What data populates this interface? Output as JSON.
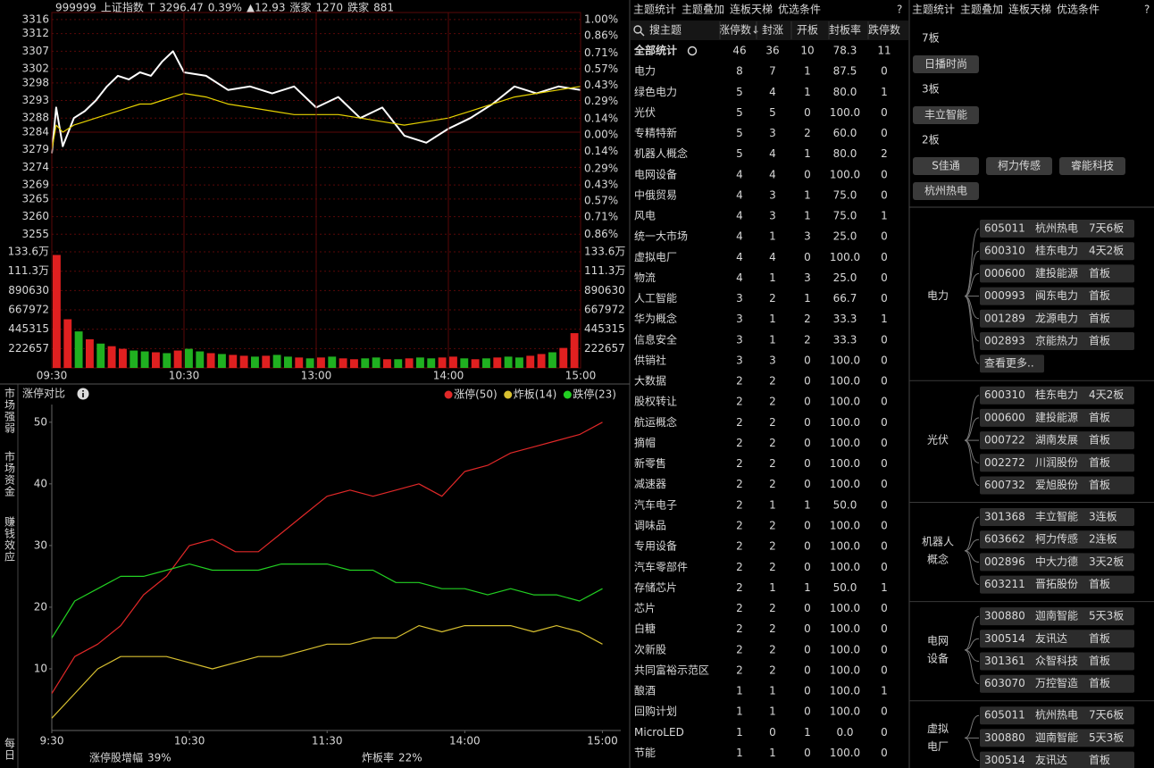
{
  "quote": {
    "code": "999999",
    "name": "上证指数",
    "mode": "T",
    "price": "3296.47",
    "change_pct": "0.39%",
    "change": "▲12.93",
    "up_label": "涨家",
    "up_count": "1270",
    "down_label": "跌家",
    "down_count": "881"
  },
  "chart_data": [
    {
      "type": "line",
      "x": [
        0,
        2,
        5,
        10,
        15,
        20,
        25,
        30,
        35,
        40,
        45,
        50,
        55,
        60,
        70,
        80,
        90,
        100,
        110,
        120,
        130,
        140,
        150,
        160,
        170,
        180,
        190,
        200,
        210,
        220,
        230,
        240
      ],
      "series": [
        {
          "color": "#ffffff",
          "values": [
            3278,
            3291,
            3280,
            3288,
            3290,
            3293,
            3297,
            3300,
            3299,
            3301,
            3300,
            3304,
            3307,
            3301,
            3300,
            3296,
            3297,
            3295,
            3297,
            3291,
            3294,
            3288,
            3291,
            3283,
            3281,
            3285,
            3288,
            3292,
            3297,
            3295,
            3297,
            3296
          ]
        },
        {
          "color": "#e6d200",
          "values": [
            3279,
            3286,
            3284,
            3286,
            3287,
            3288,
            3289,
            3290,
            3291,
            3292,
            3292,
            3293,
            3294,
            3295,
            3294,
            3292,
            3291,
            3290,
            3289,
            3289,
            3289,
            3288,
            3287,
            3286,
            3287,
            3288,
            3290,
            3292,
            3294,
            3295,
            3296,
            3297
          ]
        }
      ],
      "xlim": [
        0,
        240
      ],
      "ylim": [
        3250,
        3318
      ],
      "yticks": [
        3316,
        3312,
        3307,
        3302,
        3298,
        3293,
        3288,
        3284,
        3279,
        3274,
        3269,
        3265,
        3260,
        3255
      ],
      "y2lim": [
        -1.01,
        1.06
      ],
      "y2ticks": [
        {
          "value": 1.0,
          "label": "1.00%"
        },
        {
          "value": 0.86,
          "label": "0.86%"
        },
        {
          "value": 0.71,
          "label": "0.71%"
        },
        {
          "value": 0.57,
          "label": "0.57%"
        },
        {
          "value": 0.43,
          "label": "0.43%"
        },
        {
          "value": 0.29,
          "label": "0.29%"
        },
        {
          "value": 0.14,
          "label": "0.14%"
        },
        {
          "value": 0,
          "label": "0.00%"
        },
        {
          "value": -0.14,
          "label": "0.14%"
        },
        {
          "value": -0.29,
          "label": "0.29%"
        },
        {
          "value": -0.43,
          "label": "0.43%"
        },
        {
          "value": -0.57,
          "label": "0.57%"
        },
        {
          "value": -0.71,
          "label": "0.71%"
        },
        {
          "value": -0.86,
          "label": "0.86%"
        }
      ]
    },
    {
      "type": "bar",
      "x": [
        0,
        5,
        10,
        15,
        20,
        25,
        30,
        35,
        40,
        45,
        50,
        55,
        60,
        65,
        70,
        75,
        80,
        85,
        90,
        95,
        100,
        105,
        110,
        115,
        120,
        125,
        130,
        135,
        140,
        145,
        150,
        155,
        160,
        165,
        170,
        175,
        180,
        185,
        190,
        195,
        200,
        205,
        210,
        215,
        220,
        225,
        230,
        235
      ],
      "values": [
        1300000,
        560000,
        420000,
        330000,
        280000,
        250000,
        220000,
        200000,
        190000,
        180000,
        170000,
        200000,
        220000,
        190000,
        170000,
        160000,
        150000,
        140000,
        130000,
        140000,
        150000,
        130000,
        120000,
        110000,
        120000,
        130000,
        110000,
        100000,
        110000,
        120000,
        100000,
        100000,
        110000,
        120000,
        110000,
        120000,
        130000,
        110000,
        100000,
        110000,
        120000,
        130000,
        120000,
        140000,
        160000,
        180000,
        230000,
        400000
      ],
      "colors": [
        "#e02020",
        "#e02020",
        "#20b020",
        "#e02020",
        "#20b020",
        "#e02020",
        "#e02020",
        "#20b020",
        "#20b020",
        "#e02020",
        "#20b020",
        "#e02020",
        "#20b020",
        "#20b020",
        "#e02020",
        "#20b020",
        "#e02020",
        "#e02020",
        "#20b020",
        "#e02020",
        "#20b020",
        "#20b020",
        "#e02020",
        "#20b020",
        "#e02020",
        "#20b020",
        "#e02020",
        "#e02020",
        "#20b020",
        "#20b020",
        "#e02020",
        "#20b020",
        "#e02020",
        "#20b020",
        "#20b020",
        "#e02020",
        "#e02020",
        "#20b020",
        "#e02020",
        "#20b020",
        "#e02020",
        "#20b020",
        "#20b020",
        "#e02020",
        "#e02020",
        "#20b020",
        "#e02020",
        "#e02020"
      ],
      "xlim": [
        0,
        240
      ],
      "ylim": [
        0,
        1336000
      ],
      "yticks": [
        {
          "value": 1336000,
          "label": "133.6万"
        },
        {
          "value": 1113000,
          "label": "111.3万"
        },
        890630,
        667972,
        445315,
        222657
      ],
      "xticks": [
        {
          "value": 0,
          "label": "09:30"
        },
        {
          "value": 60,
          "label": "10:30"
        },
        {
          "value": 120,
          "label": "13:00"
        },
        {
          "value": 180,
          "label": "14:00"
        },
        {
          "value": 240,
          "label": "15:00"
        }
      ]
    },
    {
      "type": "line",
      "title": "涨停对比",
      "x": [
        0,
        10,
        20,
        30,
        40,
        50,
        60,
        70,
        80,
        90,
        100,
        110,
        120,
        130,
        140,
        150,
        160,
        170,
        180,
        190,
        200,
        210,
        220,
        230,
        240
      ],
      "series": [
        {
          "name": "涨停(50)",
          "color": "#e02828",
          "values": [
            6,
            12,
            14,
            17,
            22,
            25,
            30,
            31,
            29,
            29,
            32,
            35,
            38,
            39,
            38,
            39,
            40,
            38,
            42,
            43,
            45,
            46,
            47,
            48,
            50
          ]
        },
        {
          "name": "炸板(14)",
          "color": "#d8c030",
          "values": [
            2,
            6,
            10,
            12,
            12,
            12,
            11,
            10,
            11,
            12,
            12,
            13,
            14,
            14,
            15,
            15,
            17,
            16,
            17,
            17,
            17,
            16,
            17,
            16,
            14
          ]
        },
        {
          "name": "跌停(23)",
          "color": "#22d022",
          "values": [
            15,
            21,
            23,
            25,
            25,
            26,
            27,
            26,
            26,
            26,
            27,
            27,
            27,
            26,
            26,
            24,
            24,
            23,
            23,
            22,
            23,
            22,
            22,
            21,
            23
          ]
        }
      ],
      "xlim": [
        0,
        248
      ],
      "ylim": [
        0,
        52
      ],
      "yticks": [
        10,
        20,
        30,
        40,
        50
      ],
      "xticks": [
        {
          "value": 0,
          "label": "9:30"
        },
        {
          "value": 60,
          "label": "10:30"
        },
        {
          "value": 120,
          "label": "11:30"
        },
        {
          "value": 180,
          "label": "14:00"
        },
        {
          "value": 240,
          "label": "15:00"
        }
      ]
    }
  ],
  "limit_stats": [
    {
      "label": "涨停股增幅",
      "value": "39%"
    },
    {
      "label": "炸板率",
      "value": "22%"
    }
  ],
  "side_tabs": [
    "市场强弱",
    "市场资金",
    "赚钱效应",
    "每日"
  ],
  "tabs": [
    "主题统计",
    "主题叠加",
    "连板天梯",
    "优选条件"
  ],
  "help": "?",
  "theme_panel": {
    "search": "搜主题",
    "columns": [
      "涨停数↓",
      "封涨",
      "开板",
      "封板率",
      "跌停数"
    ],
    "rows": [
      [
        "全部统计",
        "46",
        "36",
        "10",
        "78.3",
        "11"
      ],
      [
        "电力",
        "8",
        "7",
        "1",
        "87.5",
        "0"
      ],
      [
        "绿色电力",
        "5",
        "4",
        "1",
        "80.0",
        "1"
      ],
      [
        "光伏",
        "5",
        "5",
        "0",
        "100.0",
        "0"
      ],
      [
        "专精特新",
        "5",
        "3",
        "2",
        "60.0",
        "0"
      ],
      [
        "机器人概念",
        "5",
        "4",
        "1",
        "80.0",
        "2"
      ],
      [
        "电网设备",
        "4",
        "4",
        "0",
        "100.0",
        "0"
      ],
      [
        "中俄贸易",
        "4",
        "3",
        "1",
        "75.0",
        "0"
      ],
      [
        "风电",
        "4",
        "3",
        "1",
        "75.0",
        "1"
      ],
      [
        "统一大市场",
        "4",
        "1",
        "3",
        "25.0",
        "0"
      ],
      [
        "虚拟电厂",
        "4",
        "4",
        "0",
        "100.0",
        "0"
      ],
      [
        "物流",
        "4",
        "1",
        "3",
        "25.0",
        "0"
      ],
      [
        "人工智能",
        "3",
        "2",
        "1",
        "66.7",
        "0"
      ],
      [
        "华为概念",
        "3",
        "1",
        "2",
        "33.3",
        "1"
      ],
      [
        "信息安全",
        "3",
        "1",
        "2",
        "33.3",
        "0"
      ],
      [
        "供销社",
        "3",
        "3",
        "0",
        "100.0",
        "0"
      ],
      [
        "大数据",
        "2",
        "2",
        "0",
        "100.0",
        "0"
      ],
      [
        "股权转让",
        "2",
        "2",
        "0",
        "100.0",
        "0"
      ],
      [
        "航运概念",
        "2",
        "2",
        "0",
        "100.0",
        "0"
      ],
      [
        "摘帽",
        "2",
        "2",
        "0",
        "100.0",
        "0"
      ],
      [
        "新零售",
        "2",
        "2",
        "0",
        "100.0",
        "0"
      ],
      [
        "减速器",
        "2",
        "2",
        "0",
        "100.0",
        "0"
      ],
      [
        "汽车电子",
        "2",
        "1",
        "1",
        "50.0",
        "0"
      ],
      [
        "调味品",
        "2",
        "2",
        "0",
        "100.0",
        "0"
      ],
      [
        "专用设备",
        "2",
        "2",
        "0",
        "100.0",
        "0"
      ],
      [
        "汽车零部件",
        "2",
        "2",
        "0",
        "100.0",
        "0"
      ],
      [
        "存储芯片",
        "2",
        "1",
        "1",
        "50.0",
        "1"
      ],
      [
        "芯片",
        "2",
        "2",
        "0",
        "100.0",
        "0"
      ],
      [
        "白糖",
        "2",
        "2",
        "0",
        "100.0",
        "0"
      ],
      [
        "次新股",
        "2",
        "2",
        "0",
        "100.0",
        "0"
      ],
      [
        "共同富裕示范区",
        "2",
        "2",
        "0",
        "100.0",
        "0"
      ],
      [
        "酿酒",
        "1",
        "1",
        "0",
        "100.0",
        "1"
      ],
      [
        "回购计划",
        "1",
        "1",
        "0",
        "100.0",
        "0"
      ],
      [
        "MicroLED",
        "1",
        "0",
        "1",
        "0.0",
        "0"
      ],
      [
        "节能",
        "1",
        "1",
        "0",
        "100.0",
        "0"
      ]
    ]
  },
  "ladder": [
    {
      "level": "7板",
      "stocks": [
        "日播时尚"
      ]
    },
    {
      "level": "3板",
      "stocks": [
        "丰立智能"
      ]
    },
    {
      "level": "2板",
      "stocks": [
        "S佳通",
        "柯力传感",
        "睿能科技",
        "杭州热电"
      ]
    }
  ],
  "sectors": [
    {
      "name": [
        "电力"
      ],
      "stocks": [
        [
          "605011",
          "杭州热电",
          "7天6板"
        ],
        [
          "600310",
          "桂东电力",
          "4天2板"
        ],
        [
          "000600",
          "建投能源",
          "首板"
        ],
        [
          "000993",
          "闽东电力",
          "首板"
        ],
        [
          "001289",
          "龙源电力",
          "首板"
        ],
        [
          "002893",
          "京能热力",
          "首板"
        ]
      ],
      "more": "查看更多.."
    },
    {
      "name": [
        "光伏"
      ],
      "stocks": [
        [
          "600310",
          "桂东电力",
          "4天2板"
        ],
        [
          "000600",
          "建投能源",
          "首板"
        ],
        [
          "000722",
          "湖南发展",
          "首板"
        ],
        [
          "002272",
          "川润股份",
          "首板"
        ],
        [
          "600732",
          "爱旭股份",
          "首板"
        ]
      ]
    },
    {
      "name": [
        "机器人",
        "概念"
      ],
      "stocks": [
        [
          "301368",
          "丰立智能",
          "3连板"
        ],
        [
          "603662",
          "柯力传感",
          "2连板"
        ],
        [
          "002896",
          "中大力德",
          "3天2板"
        ],
        [
          "603211",
          "晋拓股份",
          "首板"
        ]
      ]
    },
    {
      "name": [
        "电网",
        "设备"
      ],
      "stocks": [
        [
          "300880",
          "迦南智能",
          "5天3板"
        ],
        [
          "300514",
          "友讯达",
          "首板"
        ],
        [
          "301361",
          "众智科技",
          "首板"
        ],
        [
          "603070",
          "万控智造",
          "首板"
        ]
      ]
    },
    {
      "name": [
        "虚拟",
        "电厂"
      ],
      "stocks": [
        [
          "605011",
          "杭州热电",
          "7天6板"
        ],
        [
          "300880",
          "迦南智能",
          "5天3板"
        ],
        [
          "300514",
          "友讯达",
          "首板"
        ]
      ]
    }
  ]
}
